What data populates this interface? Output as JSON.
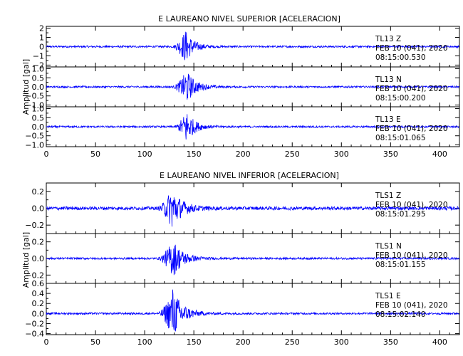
{
  "chart_data": [
    {
      "type": "line",
      "title": "E LAUREANO NIVEL SUPERIOR [ACELERACION]",
      "ylabel": "Amplitud [gal]",
      "xlim": [
        0,
        420
      ],
      "xticks": [
        0,
        50,
        100,
        150,
        200,
        250,
        300,
        350,
        400
      ],
      "series_color": "#0000ff",
      "panels": [
        {
          "name": "TL13 Z",
          "station": "TL13",
          "component": "Z",
          "date": "FEB 10 (041), 2020",
          "time": "08:15:00.530",
          "ylim": [
            -2.2,
            2.2
          ],
          "yticks": [
            -2,
            -1,
            0,
            1,
            2
          ],
          "ytick_labels": [
            "−2",
            "−1",
            "0",
            "1",
            "2"
          ],
          "noise": 0.1,
          "peak": 2.0,
          "event_start": 128,
          "event_peak": 141,
          "event_decay": 8
        },
        {
          "name": "TL13 N",
          "station": "TL13",
          "component": "N",
          "date": "FEB 10 (041), 2020",
          "time": "08:15:00.200",
          "ylim": [
            -1.1,
            1.1
          ],
          "yticks": [
            -1.0,
            -0.5,
            0.0,
            0.5,
            1.0
          ],
          "ytick_labels": [
            "−1.0",
            "−0.5",
            "0.0",
            "0.5",
            "1.0"
          ],
          "noise": 0.05,
          "peak": 1.0,
          "event_start": 128,
          "event_peak": 142,
          "event_decay": 9
        },
        {
          "name": "TL13 E",
          "station": "TL13",
          "component": "E",
          "date": "FEB 10 (041), 2020",
          "time": "08:15:01.065",
          "ylim": [
            -1.1,
            1.1
          ],
          "yticks": [
            -1.0,
            -0.5,
            0.0,
            0.5,
            1.0
          ],
          "ytick_labels": [
            "−1.0",
            "−0.5",
            "0.0",
            "0.5",
            "1.0"
          ],
          "noise": 0.05,
          "peak": 1.0,
          "event_start": 130,
          "event_peak": 142,
          "event_decay": 8
        }
      ]
    },
    {
      "type": "line",
      "title": "E LAUREANO NIVEL INFERIOR [ACELERACION]",
      "ylabel": "Amplitud [gal]",
      "xlim": [
        0,
        420
      ],
      "xticks": [
        0,
        50,
        100,
        150,
        200,
        250,
        300,
        350,
        400
      ],
      "series_color": "#0000ff",
      "panels": [
        {
          "name": "TLS1 Z",
          "station": "TLS1",
          "component": "Z",
          "date": "FEB 10 (041), 2020",
          "time": "08:15:01.295",
          "ylim": [
            -0.3,
            0.3
          ],
          "yticks": [
            -0.2,
            0.0,
            0.2
          ],
          "ytick_labels": [
            "−0.2",
            "0.0",
            "0.2"
          ],
          "noise": 0.02,
          "peak": 0.27,
          "event_start": 113,
          "event_peak": 127,
          "event_decay": 10
        },
        {
          "name": "TLS1 N",
          "station": "TLS1",
          "component": "N",
          "date": "FEB 10 (041), 2020",
          "time": "08:15:01.155",
          "ylim": [
            -0.3,
            0.3
          ],
          "yticks": [
            -0.2,
            0.0,
            0.2
          ],
          "ytick_labels": [
            "−0.2",
            "0.0",
            "0.2"
          ],
          "noise": 0.012,
          "peak": 0.25,
          "event_start": 113,
          "event_peak": 128,
          "event_decay": 10
        },
        {
          "name": "TLS1 E",
          "station": "TLS1",
          "component": "E",
          "date": "FEB 10 (041), 2020",
          "time": "08:15:02.140",
          "ylim": [
            -0.42,
            0.6
          ],
          "yticks": [
            -0.4,
            -0.2,
            0.0,
            0.2,
            0.4,
            0.6
          ],
          "ytick_labels": [
            "−0.4",
            "−0.2",
            "0.0",
            "0.2",
            "0.4",
            "0.6"
          ],
          "noise": 0.02,
          "peak": 0.55,
          "event_start": 113,
          "event_peak": 128,
          "event_decay": 10
        }
      ]
    }
  ]
}
